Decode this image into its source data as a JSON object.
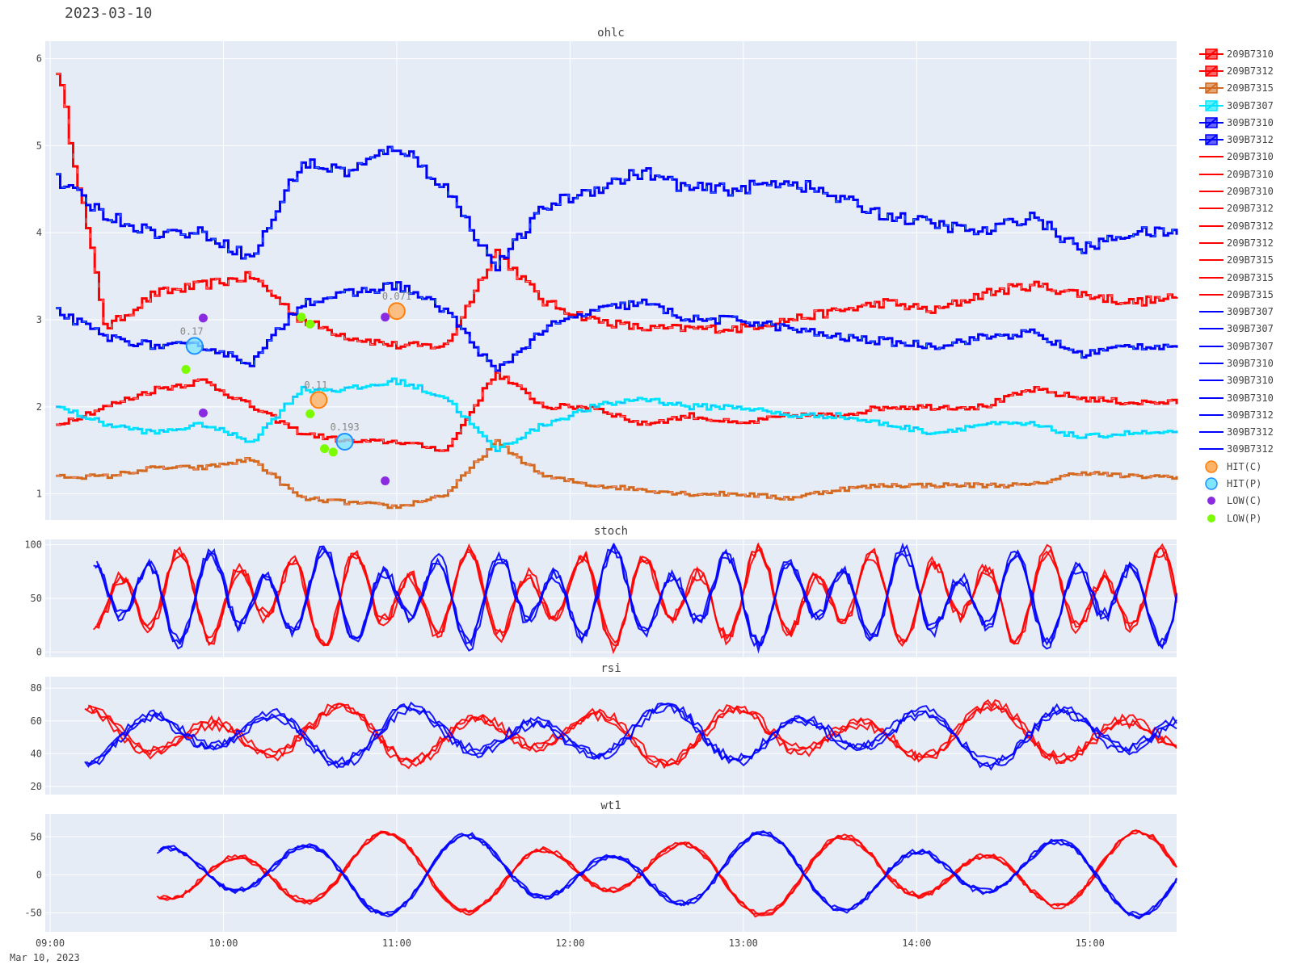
{
  "title": "2023-03-10",
  "chart_data": {
    "type": "line",
    "x_start": "09:00",
    "x_end": "15:30",
    "xaxis": {
      "ticks": [
        "09:00",
        "10:00",
        "11:00",
        "12:00",
        "13:00",
        "14:00",
        "15:00"
      ],
      "date_label": "Mar 10, 2023"
    },
    "panels": [
      {
        "title": "ohlc",
        "ylim": [
          0.7,
          6.2
        ],
        "yticks": [
          1,
          2,
          3,
          4,
          5,
          6
        ]
      },
      {
        "title": "stoch",
        "ylim": [
          -5,
          105
        ],
        "yticks": [
          0,
          50,
          100
        ]
      },
      {
        "title": "rsi",
        "ylim": [
          15,
          87
        ],
        "yticks": [
          20,
          40,
          60,
          80
        ]
      },
      {
        "title": "wt1",
        "ylim": [
          -75,
          80
        ],
        "yticks": [
          -50,
          0,
          50
        ]
      }
    ],
    "ohlc_series": [
      {
        "name": "209B7310",
        "color": "#ff0000",
        "approx": [
          5.9,
          2.9,
          3.3,
          3.4,
          3.5,
          3.0,
          2.8,
          2.7,
          2.7,
          3.8,
          3.2,
          3.0,
          2.9,
          2.9,
          2.9,
          3.0,
          3.1,
          3.2,
          3.1,
          3.3,
          3.4,
          3.3,
          3.2,
          3.25
        ]
      },
      {
        "name": "209B7312",
        "color": "#ff0000",
        "approx": [
          1.8,
          2.0,
          2.2,
          2.3,
          2.0,
          1.7,
          1.6,
          1.6,
          1.5,
          2.4,
          2.0,
          2.0,
          1.8,
          1.9,
          1.8,
          1.9,
          1.9,
          2.0,
          2.0,
          2.0,
          2.2,
          2.1,
          2.05,
          2.05
        ]
      },
      {
        "name": "209B7315",
        "color": "#d2691e",
        "approx": [
          1.2,
          1.2,
          1.3,
          1.3,
          1.4,
          0.95,
          0.9,
          0.85,
          1.0,
          1.6,
          1.2,
          1.1,
          1.05,
          1.0,
          1.0,
          0.95,
          1.05,
          1.1,
          1.1,
          1.1,
          1.1,
          1.25,
          1.2,
          1.2
        ]
      },
      {
        "name": "309B7307",
        "color": "#00e5ff",
        "approx": [
          2.0,
          1.8,
          1.7,
          1.8,
          1.6,
          2.2,
          2.2,
          2.3,
          2.1,
          1.5,
          1.8,
          2.0,
          2.1,
          2.0,
          2.0,
          1.9,
          1.9,
          1.8,
          1.7,
          1.8,
          1.8,
          1.65,
          1.7,
          1.7
        ]
      },
      {
        "name": "309B7310",
        "color": "#0000ff",
        "approx": [
          3.1,
          2.8,
          2.7,
          2.7,
          2.5,
          3.2,
          3.3,
          3.4,
          3.1,
          2.4,
          2.9,
          3.1,
          3.2,
          3.0,
          3.0,
          2.9,
          2.8,
          2.75,
          2.7,
          2.8,
          2.85,
          2.6,
          2.7,
          2.7
        ]
      },
      {
        "name": "309B7312",
        "color": "#0000ff",
        "approx": [
          4.6,
          4.2,
          4.0,
          4.0,
          3.7,
          4.8,
          4.7,
          5.0,
          4.5,
          3.6,
          4.3,
          4.5,
          4.7,
          4.5,
          4.5,
          4.6,
          4.4,
          4.2,
          4.1,
          4.0,
          4.2,
          3.8,
          4.0,
          4.0
        ]
      }
    ],
    "legend": [
      {
        "name": "209B7310",
        "kind": "ohlc",
        "color": "#ff0000"
      },
      {
        "name": "209B7312",
        "kind": "ohlc",
        "color": "#ff0000"
      },
      {
        "name": "209B7315",
        "kind": "ohlc",
        "color": "#d2691e"
      },
      {
        "name": "309B7307",
        "kind": "ohlc",
        "color": "#00e5ff"
      },
      {
        "name": "309B7310",
        "kind": "ohlc",
        "color": "#0000ff"
      },
      {
        "name": "309B7312",
        "kind": "ohlc",
        "color": "#0000ff"
      },
      {
        "name": "209B7310",
        "kind": "line",
        "color": "#ff0000"
      },
      {
        "name": "209B7310",
        "kind": "line",
        "color": "#ff0000"
      },
      {
        "name": "209B7310",
        "kind": "line",
        "color": "#ff0000"
      },
      {
        "name": "209B7312",
        "kind": "line",
        "color": "#ff0000"
      },
      {
        "name": "209B7312",
        "kind": "line",
        "color": "#ff0000"
      },
      {
        "name": "209B7312",
        "kind": "line",
        "color": "#ff0000"
      },
      {
        "name": "209B7315",
        "kind": "line",
        "color": "#ff0000"
      },
      {
        "name": "209B7315",
        "kind": "line",
        "color": "#ff0000"
      },
      {
        "name": "209B7315",
        "kind": "line",
        "color": "#ff0000"
      },
      {
        "name": "309B7307",
        "kind": "line",
        "color": "#0000ff"
      },
      {
        "name": "309B7307",
        "kind": "line",
        "color": "#0000ff"
      },
      {
        "name": "309B7307",
        "kind": "line",
        "color": "#0000ff"
      },
      {
        "name": "309B7310",
        "kind": "line",
        "color": "#0000ff"
      },
      {
        "name": "309B7310",
        "kind": "line",
        "color": "#0000ff"
      },
      {
        "name": "309B7310",
        "kind": "line",
        "color": "#0000ff"
      },
      {
        "name": "309B7312",
        "kind": "line",
        "color": "#0000ff"
      },
      {
        "name": "309B7312",
        "kind": "line",
        "color": "#0000ff"
      },
      {
        "name": "309B7312",
        "kind": "line",
        "color": "#0000ff"
      },
      {
        "name": "HIT(C)",
        "kind": "bigmarker",
        "color": "#ffb366",
        "stroke": "#ff7f0e"
      },
      {
        "name": "HIT(P)",
        "kind": "bigmarker",
        "color": "#80e5ff",
        "stroke": "#1e90ff"
      },
      {
        "name": "LOW(C)",
        "kind": "marker",
        "color": "#8a2be2"
      },
      {
        "name": "LOW(P)",
        "kind": "marker",
        "color": "#7cfc00"
      }
    ],
    "markers": [
      {
        "type": "HIT(P)",
        "time": "09:50",
        "y": 2.7,
        "label": "0.17"
      },
      {
        "type": "HIT(C)",
        "time": "10:33",
        "y": 2.08,
        "label": "0.11"
      },
      {
        "type": "HIT(P)",
        "time": "10:42",
        "y": 1.6,
        "label": "0.193"
      },
      {
        "type": "HIT(C)",
        "time": "11:00",
        "y": 3.1,
        "label": "0.071"
      },
      {
        "type": "LOW(P)",
        "time": "09:47",
        "y": 2.43
      },
      {
        "type": "LOW(C)",
        "time": "09:53",
        "y": 3.02
      },
      {
        "type": "LOW(C)",
        "time": "09:53",
        "y": 1.93
      },
      {
        "type": "LOW(P)",
        "time": "10:27",
        "y": 3.03
      },
      {
        "type": "LOW(P)",
        "time": "10:30",
        "y": 2.95
      },
      {
        "type": "LOW(P)",
        "time": "10:30",
        "y": 1.92
      },
      {
        "type": "LOW(P)",
        "time": "10:35",
        "y": 1.52
      },
      {
        "type": "LOW(P)",
        "time": "10:38",
        "y": 1.48
      },
      {
        "type": "LOW(C)",
        "time": "10:56",
        "y": 3.03
      },
      {
        "type": "LOW(C)",
        "time": "10:56",
        "y": 1.15
      }
    ]
  }
}
